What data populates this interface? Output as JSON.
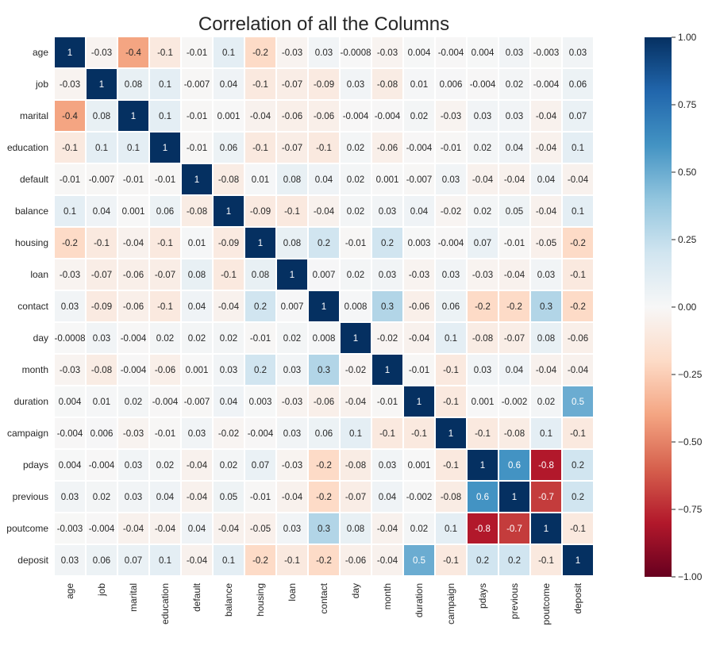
{
  "chart_data": {
    "type": "heatmap",
    "title": "Correlation of all the Columns",
    "xlabel": "",
    "ylabel": "",
    "columns": [
      "age",
      "job",
      "marital",
      "education",
      "default",
      "balance",
      "housing",
      "loan",
      "contact",
      "day",
      "month",
      "duration",
      "campaign",
      "pdays",
      "previous",
      "poutcome",
      "deposit"
    ],
    "rows": [
      "age",
      "job",
      "marital",
      "education",
      "default",
      "balance",
      "housing",
      "loan",
      "contact",
      "day",
      "month",
      "duration",
      "campaign",
      "pdays",
      "previous",
      "poutcome",
      "deposit"
    ],
    "values": [
      [
        "1",
        "-0.03",
        "-0.4",
        "-0.1",
        "-0.01",
        "0.1",
        "-0.2",
        "-0.03",
        "0.03",
        "-0.0008",
        "-0.03",
        "0.004",
        "-0.004",
        "0.004",
        "0.03",
        "-0.003",
        "0.03"
      ],
      [
        "-0.03",
        "1",
        "0.08",
        "0.1",
        "-0.007",
        "0.04",
        "-0.1",
        "-0.07",
        "-0.09",
        "0.03",
        "-0.08",
        "0.01",
        "0.006",
        "-0.004",
        "0.02",
        "-0.004",
        "0.06"
      ],
      [
        "-0.4",
        "0.08",
        "1",
        "0.1",
        "-0.01",
        "0.001",
        "-0.04",
        "-0.06",
        "-0.06",
        "-0.004",
        "-0.004",
        "0.02",
        "-0.03",
        "0.03",
        "0.03",
        "-0.04",
        "0.07"
      ],
      [
        "-0.1",
        "0.1",
        "0.1",
        "1",
        "-0.01",
        "0.06",
        "-0.1",
        "-0.07",
        "-0.1",
        "0.02",
        "-0.06",
        "-0.004",
        "-0.01",
        "0.02",
        "0.04",
        "-0.04",
        "0.1"
      ],
      [
        "-0.01",
        "-0.007",
        "-0.01",
        "-0.01",
        "1",
        "-0.08",
        "0.01",
        "0.08",
        "0.04",
        "0.02",
        "0.001",
        "-0.007",
        "0.03",
        "-0.04",
        "-0.04",
        "0.04",
        "-0.04"
      ],
      [
        "0.1",
        "0.04",
        "0.001",
        "0.06",
        "-0.08",
        "1",
        "-0.09",
        "-0.1",
        "-0.04",
        "0.02",
        "0.03",
        "0.04",
        "-0.02",
        "0.02",
        "0.05",
        "-0.04",
        "0.1"
      ],
      [
        "-0.2",
        "-0.1",
        "-0.04",
        "-0.1",
        "0.01",
        "-0.09",
        "1",
        "0.08",
        "0.2",
        "-0.01",
        "0.2",
        "0.003",
        "-0.004",
        "0.07",
        "-0.01",
        "-0.05",
        "-0.2"
      ],
      [
        "-0.03",
        "-0.07",
        "-0.06",
        "-0.07",
        "0.08",
        "-0.1",
        "0.08",
        "1",
        "0.007",
        "0.02",
        "0.03",
        "-0.03",
        "0.03",
        "-0.03",
        "-0.04",
        "0.03",
        "-0.1"
      ],
      [
        "0.03",
        "-0.09",
        "-0.06",
        "-0.1",
        "0.04",
        "-0.04",
        "0.2",
        "0.007",
        "1",
        "0.008",
        "0.3",
        "-0.06",
        "0.06",
        "-0.2",
        "-0.2",
        "0.3",
        "-0.2"
      ],
      [
        "-0.0008",
        "0.03",
        "-0.004",
        "0.02",
        "0.02",
        "0.02",
        "-0.01",
        "0.02",
        "0.008",
        "1",
        "-0.02",
        "-0.04",
        "0.1",
        "-0.08",
        "-0.07",
        "0.08",
        "-0.06"
      ],
      [
        "-0.03",
        "-0.08",
        "-0.004",
        "-0.06",
        "0.001",
        "0.03",
        "0.2",
        "0.03",
        "0.3",
        "-0.02",
        "1",
        "-0.01",
        "-0.1",
        "0.03",
        "0.04",
        "-0.04",
        "-0.04"
      ],
      [
        "0.004",
        "0.01",
        "0.02",
        "-0.004",
        "-0.007",
        "0.04",
        "0.003",
        "-0.03",
        "-0.06",
        "-0.04",
        "-0.01",
        "1",
        "-0.1",
        "0.001",
        "-0.002",
        "0.02",
        "0.5"
      ],
      [
        "-0.004",
        "0.006",
        "-0.03",
        "-0.01",
        "0.03",
        "-0.02",
        "-0.004",
        "0.03",
        "0.06",
        "0.1",
        "-0.1",
        "-0.1",
        "1",
        "-0.1",
        "-0.08",
        "0.1",
        "-0.1"
      ],
      [
        "0.004",
        "-0.004",
        "0.03",
        "0.02",
        "-0.04",
        "0.02",
        "0.07",
        "-0.03",
        "-0.2",
        "-0.08",
        "0.03",
        "0.001",
        "-0.1",
        "1",
        "0.6",
        "-0.8",
        "0.2"
      ],
      [
        "0.03",
        "0.02",
        "0.03",
        "0.04",
        "-0.04",
        "0.05",
        "-0.01",
        "-0.04",
        "-0.2",
        "-0.07",
        "0.04",
        "-0.002",
        "-0.08",
        "0.6",
        "1",
        "-0.7",
        "0.2"
      ],
      [
        "-0.003",
        "-0.004",
        "-0.04",
        "-0.04",
        "0.04",
        "-0.04",
        "-0.05",
        "0.03",
        "0.3",
        "0.08",
        "-0.04",
        "0.02",
        "0.1",
        "-0.8",
        "-0.7",
        "1",
        "-0.1"
      ],
      [
        "0.03",
        "0.06",
        "0.07",
        "0.1",
        "-0.04",
        "0.1",
        "-0.2",
        "-0.1",
        "-0.2",
        "-0.06",
        "-0.04",
        "0.5",
        "-0.1",
        "0.2",
        "0.2",
        "-0.1",
        "1"
      ]
    ],
    "colorbar": {
      "range": [
        -1.0,
        1.0
      ],
      "ticks": [
        "1.00",
        "0.75",
        "0.50",
        "0.25",
        "0.00",
        "−0.25",
        "−0.50",
        "−0.75",
        "−1.00"
      ],
      "colormap": "RdBu"
    },
    "grid": false,
    "legend": "colorbar-right"
  }
}
